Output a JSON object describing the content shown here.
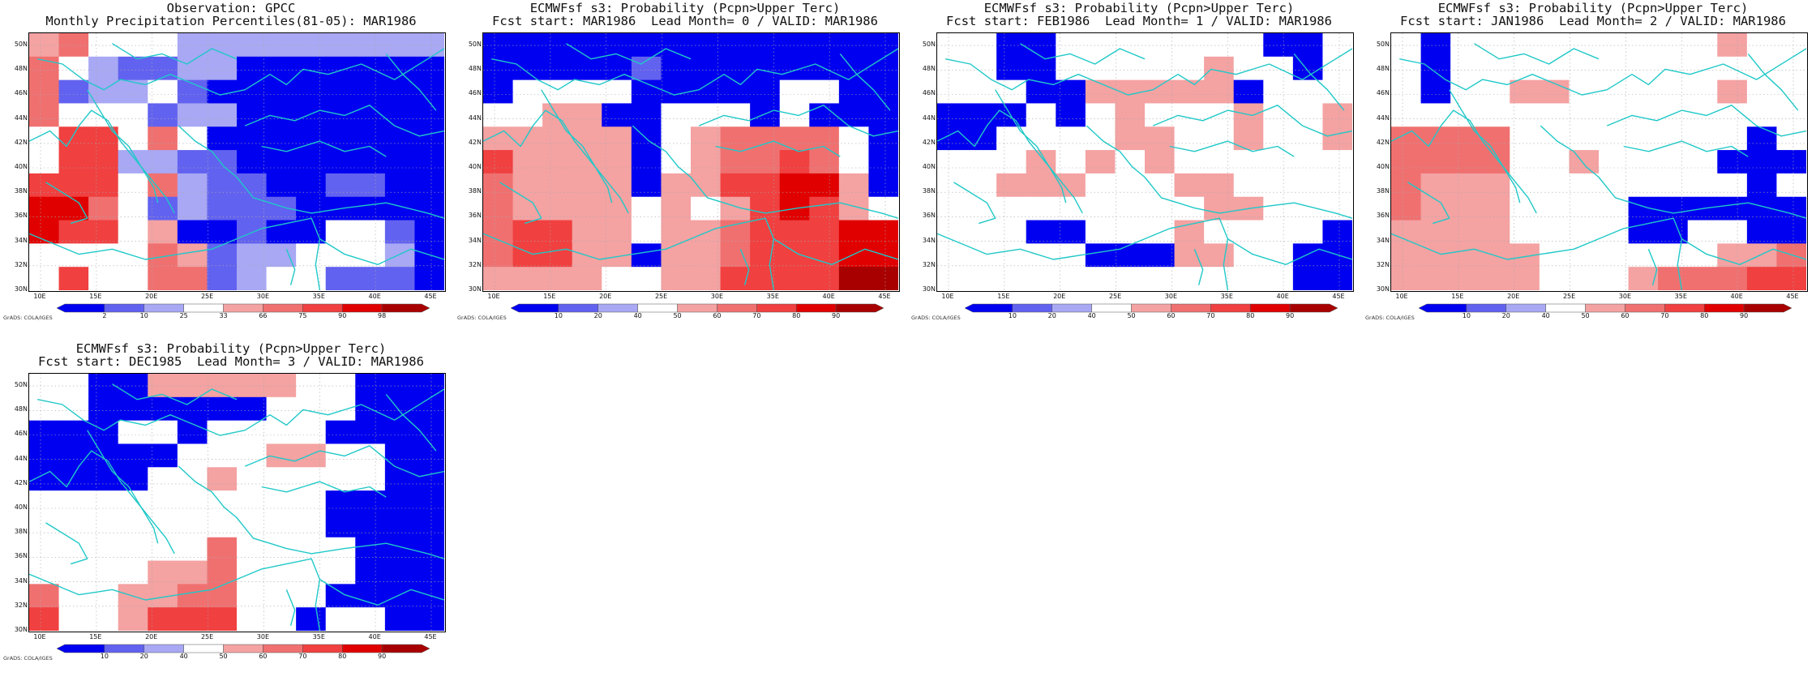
{
  "credit": "GrADS: COLA/IGES",
  "lat_labels": [
    "30N",
    "32N",
    "34N",
    "36N",
    "38N",
    "40N",
    "42N",
    "44N",
    "46N",
    "48N",
    "50N"
  ],
  "lon_labels": [
    "10E",
    "15E",
    "20E",
    "25E",
    "30E",
    "35E",
    "40E",
    "45E"
  ],
  "colors": {
    "coast": "#20c8c8",
    "grid": "#aaaaaa",
    "scale": [
      "#0000f0",
      "#6262f0",
      "#a8a8f4",
      "#ffffff",
      "#f4a2a2",
      "#f07070",
      "#f04040",
      "#e00000",
      "#a80000"
    ]
  },
  "panels": [
    {
      "title": "Observation: GPCC",
      "subtitle": "Monthly Precipitation Percentiles(81-05): MAR1986",
      "colorbar_labels": [
        "2",
        "10",
        "25",
        "33",
        "66",
        "75",
        "90",
        "98"
      ],
      "grid": [
        "45333222222222",
        "53211220000000",
        "51223100000000",
        "53331220000000",
        "36635300000000",
        "36622110000000",
        "66635211001100",
        "77531211100000",
        "76634001003310",
        "33335412233320",
        "36335512331110"
      ]
    },
    {
      "title": "ECMWFsf s3: Probability (Pcpn>Upper Terc)",
      "subtitle": "Fcst start: MAR1986  Lead Month= 0 / VALID: MAR1986",
      "colorbar_labels": [
        "10",
        "20",
        "40",
        "50",
        "60",
        "70",
        "80",
        "90"
      ],
      "grid": [
        "00000000000000",
        "00000100000000",
        "03333000003300",
        "33440033303000",
        "44444034555530",
        "64444034556530",
        "54444044667740",
        "54444343467643",
        "56644344566677",
        "56644044566677",
        "44443344666688"
      ]
    },
    {
      "title": "ECMWFsf s3: Probability (Pcpn>Upper Terc)",
      "subtitle": "Fcst start: FEB1986  Lead Month= 1 / VALID: MAR1986",
      "colorbar_labels": [
        "10",
        "20",
        "40",
        "50",
        "60",
        "70",
        "80",
        "90"
      ],
      "grid": [
        "33003333333003",
        "33003333343303",
        "33300444440333",
        "00030343334334",
        "00333344334334",
        "33343434333333",
        "33444333443333",
        "33333333344333",
        "33300333433330",
        "33333000443300",
        "33333333333300"
      ]
    },
    {
      "title": "ECMWFsf s3: Probability (Pcpn>Upper Terc)",
      "subtitle": "Fcst start: JAN1986  Lead Month= 2 / VALID: MAR1986",
      "colorbar_labels": [
        "10",
        "20",
        "40",
        "50",
        "60",
        "70",
        "80",
        "90"
      ],
      "grid": [
        "30333333333433",
        "30333333333333",
        "30334433333433",
        "33333333333333",
        "55553333333303",
        "55553343333000",
        "54443333333303",
        "54443333000000",
        "44443333003300",
        "44444333333445",
        "44444333455566"
      ]
    },
    {
      "title": "ECMWFsf s3: Probability (Pcpn>Upper Terc)",
      "subtitle": "Fcst start: DEC1985  Lead Month= 3 / VALID: MAR1986",
      "colorbar_labels": [
        "10",
        "20",
        "40",
        "50",
        "60",
        "70",
        "80",
        "90"
      ],
      "grid": [
        "33004444433000",
        "33000000333000",
        "00033033330000",
        "00000333443300",
        "00003343333300",
        "33333333330000",
        "33333333330000",
        "33333353333000",
        "33334453333000",
        "53344553330000",
        "63346663303300"
      ]
    }
  ]
}
